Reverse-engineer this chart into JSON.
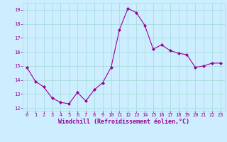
{
  "x": [
    0,
    1,
    2,
    3,
    4,
    5,
    6,
    7,
    8,
    9,
    10,
    11,
    12,
    13,
    14,
    15,
    16,
    17,
    18,
    19,
    20,
    21,
    22,
    23
  ],
  "y": [
    14.9,
    13.9,
    13.5,
    12.7,
    12.4,
    12.3,
    13.1,
    12.5,
    13.3,
    13.8,
    14.9,
    17.6,
    19.1,
    18.8,
    17.9,
    16.2,
    16.5,
    16.1,
    15.9,
    15.8,
    14.9,
    15.0,
    15.2,
    15.2
  ],
  "line_color": "#990099",
  "marker_color": "#990099",
  "bg_color": "#cceeff",
  "grid_color": "#aadddd",
  "xlabel": "Windchill (Refroidissement éolien,°C)",
  "xlabel_color": "#990099",
  "tick_color": "#990099",
  "ylim": [
    11.8,
    19.5
  ],
  "xlim": [
    -0.5,
    23.5
  ],
  "yticks": [
    12,
    13,
    14,
    15,
    16,
    17,
    18,
    19
  ],
  "xticks": [
    0,
    1,
    2,
    3,
    4,
    5,
    6,
    7,
    8,
    9,
    10,
    11,
    12,
    13,
    14,
    15,
    16,
    17,
    18,
    19,
    20,
    21,
    22,
    23
  ],
  "tick_fontsize": 5.0,
  "xlabel_fontsize": 6.0,
  "marker_size": 2.0,
  "line_width": 0.8
}
